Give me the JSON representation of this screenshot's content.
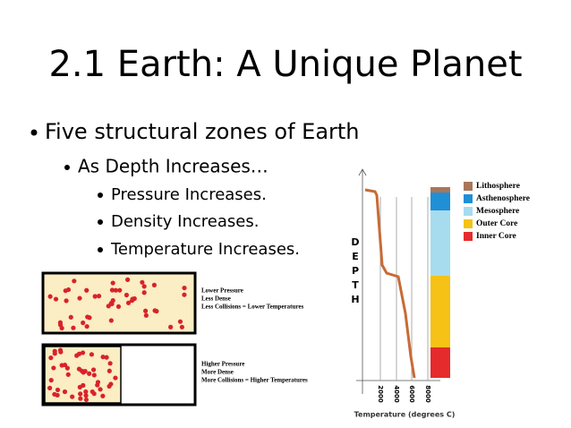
{
  "title": "2.1 Earth: A Unique Planet",
  "bullets": [
    {
      "text": "Five structural zones of Earth",
      "level": 1
    },
    {
      "text": "As Depth Increases…",
      "level": 2
    },
    {
      "text": "Pressure Increases.",
      "level": 3
    },
    {
      "text": "Density Increases.",
      "level": 3
    },
    {
      "text": "Temperature Increases.",
      "level": 3
    }
  ],
  "boxes": [
    {
      "lines": [
        "Lower Pressure",
        "Less Dense",
        "Less Collisions = Lower Temperatures"
      ]
    },
    {
      "lines": [
        "Higher Pressure",
        "More Dense",
        "More Collisions = Higher Temperatures"
      ]
    }
  ],
  "diagram": {
    "y_label_letters": [
      "D",
      "E",
      "P",
      "T",
      "H"
    ],
    "x_ticks": [
      2000,
      4000,
      6000,
      8000
    ],
    "x_label": "Temperature (degrees C)",
    "legend": [
      {
        "name": "Lithosphere",
        "color": "#a8765a"
      },
      {
        "name": "Asthenosphere",
        "color": "#1f8fd6"
      },
      {
        "name": "Mesosphere",
        "color": "#a6dcee"
      },
      {
        "name": "Outer Core",
        "color": "#f5c215"
      },
      {
        "name": "Inner Core",
        "color": "#e52b2b"
      }
    ]
  }
}
